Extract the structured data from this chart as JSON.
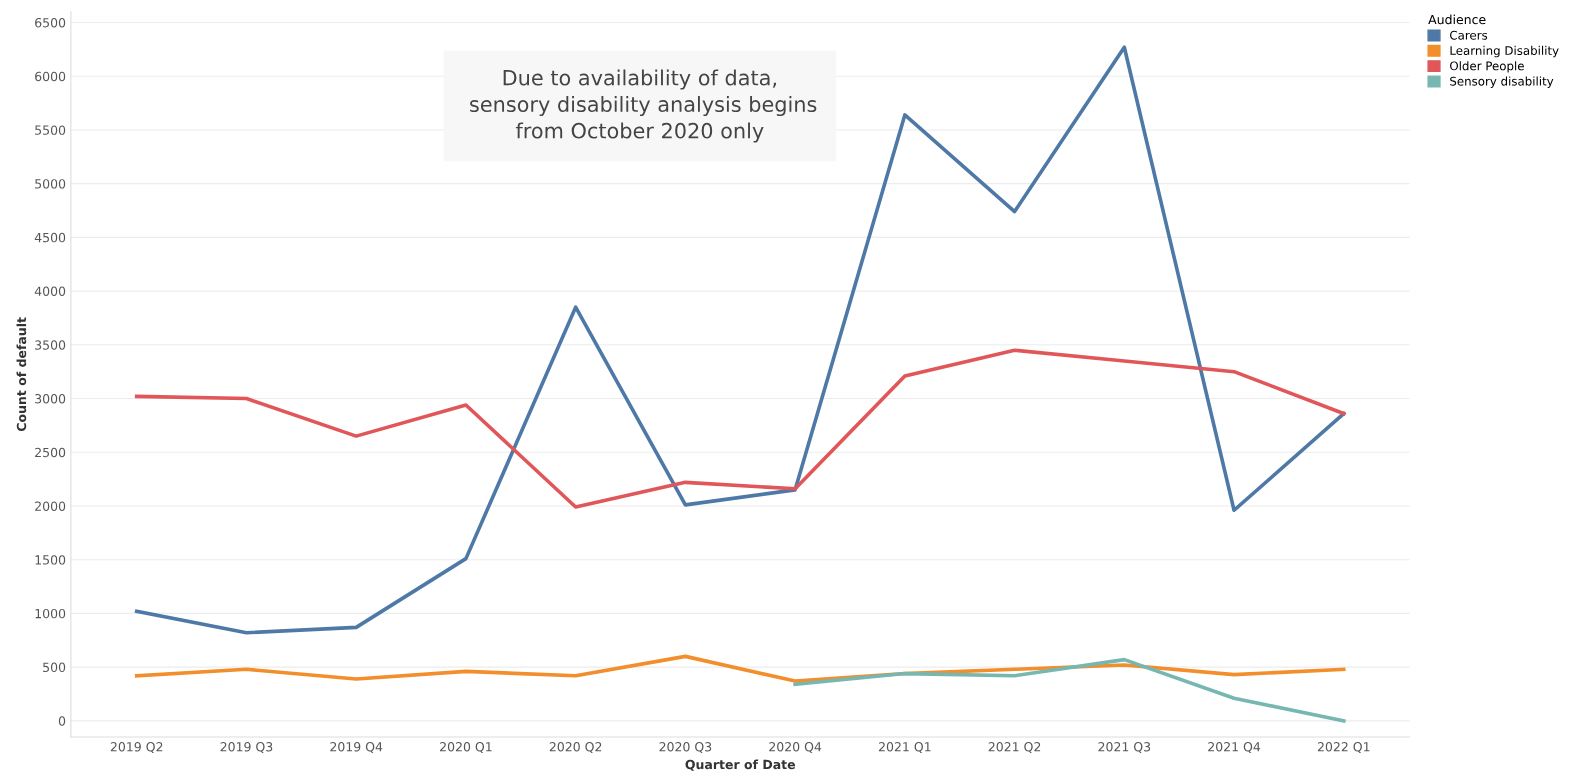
{
  "chart_data": {
    "type": "line",
    "xlabel": "Quarter of Date",
    "ylabel": "Count of default",
    "legend_title": "Audience",
    "categories": [
      "2019 Q2",
      "2019 Q3",
      "2019 Q4",
      "2020 Q1",
      "2020 Q2",
      "2020 Q3",
      "2020 Q4",
      "2021 Q1",
      "2021 Q2",
      "2021 Q3",
      "2021 Q4",
      "2022 Q1"
    ],
    "series": [
      {
        "name": "Carers",
        "color": "#4e79a7",
        "values": [
          1020,
          820,
          870,
          1510,
          3850,
          2010,
          2150,
          5640,
          4740,
          6270,
          1960,
          2860
        ]
      },
      {
        "name": "Learning Disability",
        "color": "#f28e2b",
        "values": [
          420,
          480,
          390,
          460,
          420,
          600,
          370,
          440,
          480,
          520,
          430,
          480
        ]
      },
      {
        "name": "Older People",
        "color": "#e15759",
        "values": [
          3020,
          3000,
          2650,
          2940,
          1990,
          2220,
          2160,
          3210,
          3450,
          3350,
          3250,
          2860
        ]
      },
      {
        "name": "Sensory disability",
        "color": "#76b7b2",
        "values": [
          null,
          null,
          null,
          null,
          null,
          null,
          340,
          440,
          420,
          570,
          210,
          0
        ]
      }
    ],
    "ylim": [
      -150,
      6600
    ],
    "yticks": [
      0,
      500,
      1000,
      1500,
      2000,
      2500,
      3000,
      3500,
      4000,
      4500,
      5000,
      5500,
      6000,
      6500
    ],
    "grid": "y",
    "legend": "top right",
    "marker": "none",
    "line_style": "solid",
    "annotations": [
      "Due to availability of data,\n sensory disability analysis begins\nfrom October 2020 only"
    ]
  }
}
